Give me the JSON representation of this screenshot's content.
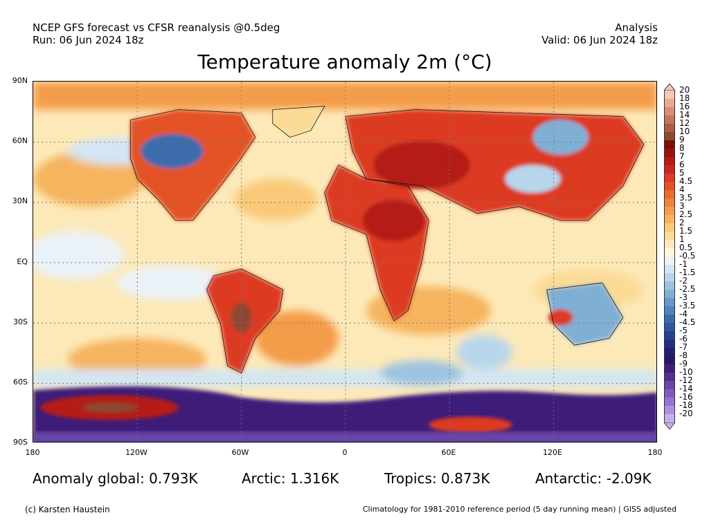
{
  "header": {
    "line1": "NCEP GFS forecast vs CFSR reanalysis @0.5deg",
    "line2": "Run: 06 Jun 2024 18z",
    "right1": "Analysis",
    "right2": "Valid: 06 Jun 2024 18z"
  },
  "title": "Temperature anomaly 2m (°C)",
  "axes": {
    "lat_labels": [
      "90N",
      "60N",
      "30N",
      "EQ",
      "30S",
      "60S",
      "90S"
    ],
    "lon_labels": [
      "180",
      "120W",
      "60W",
      "0",
      "60E",
      "120E",
      "180"
    ]
  },
  "colorbar": {
    "labels": [
      "20",
      "18",
      "16",
      "14",
      "12",
      "10",
      "9",
      "8",
      "7",
      "6",
      "5",
      "4.5",
      "4",
      "3.5",
      "3",
      "2.5",
      "2",
      "1.5",
      "1",
      "0.5",
      "-0.5",
      "-1",
      "-1.5",
      "-2",
      "-2.5",
      "-3",
      "-3.5",
      "-4",
      "-4.5",
      "-5",
      "-6",
      "-7",
      "-8",
      "-9",
      "-10",
      "-12",
      "-14",
      "-16",
      "-18",
      "-20"
    ],
    "colors": [
      "#f4c8b4",
      "#e6aa92",
      "#d88e74",
      "#c67357",
      "#ad5c42",
      "#8f4632",
      "#7a0e0e",
      "#9a1212",
      "#b51a16",
      "#cc2620",
      "#dc3a24",
      "#e45228",
      "#ea6a30",
      "#ef8338",
      "#f39c48",
      "#f6b45e",
      "#f9c978",
      "#fbdb96",
      "#fde9b8",
      "#fff6df",
      "#eaf2f8",
      "#d2e6f3",
      "#b8d6eb",
      "#9cc3e1",
      "#80afd6",
      "#6698c9",
      "#5082bb",
      "#3c6cad",
      "#2f569e",
      "#27418d",
      "#24307e",
      "#231e72",
      "#2a1466",
      "#3d1f7a",
      "#52308f",
      "#6845a6",
      "#7f5bbd",
      "#9674d0",
      "#ad90df",
      "#c7b0ea"
    ]
  },
  "stats": {
    "global": "Anomaly global: 0.793K",
    "arctic": "Arctic: 1.316K",
    "tropics": "Tropics: 0.873K",
    "antarctic": "Antarctic: -2.09K"
  },
  "footer": {
    "credit": "(c) Karsten Haustein",
    "note": "Climatology for 1981-2010 reference period (5 day running mean) | GISS adjusted"
  }
}
